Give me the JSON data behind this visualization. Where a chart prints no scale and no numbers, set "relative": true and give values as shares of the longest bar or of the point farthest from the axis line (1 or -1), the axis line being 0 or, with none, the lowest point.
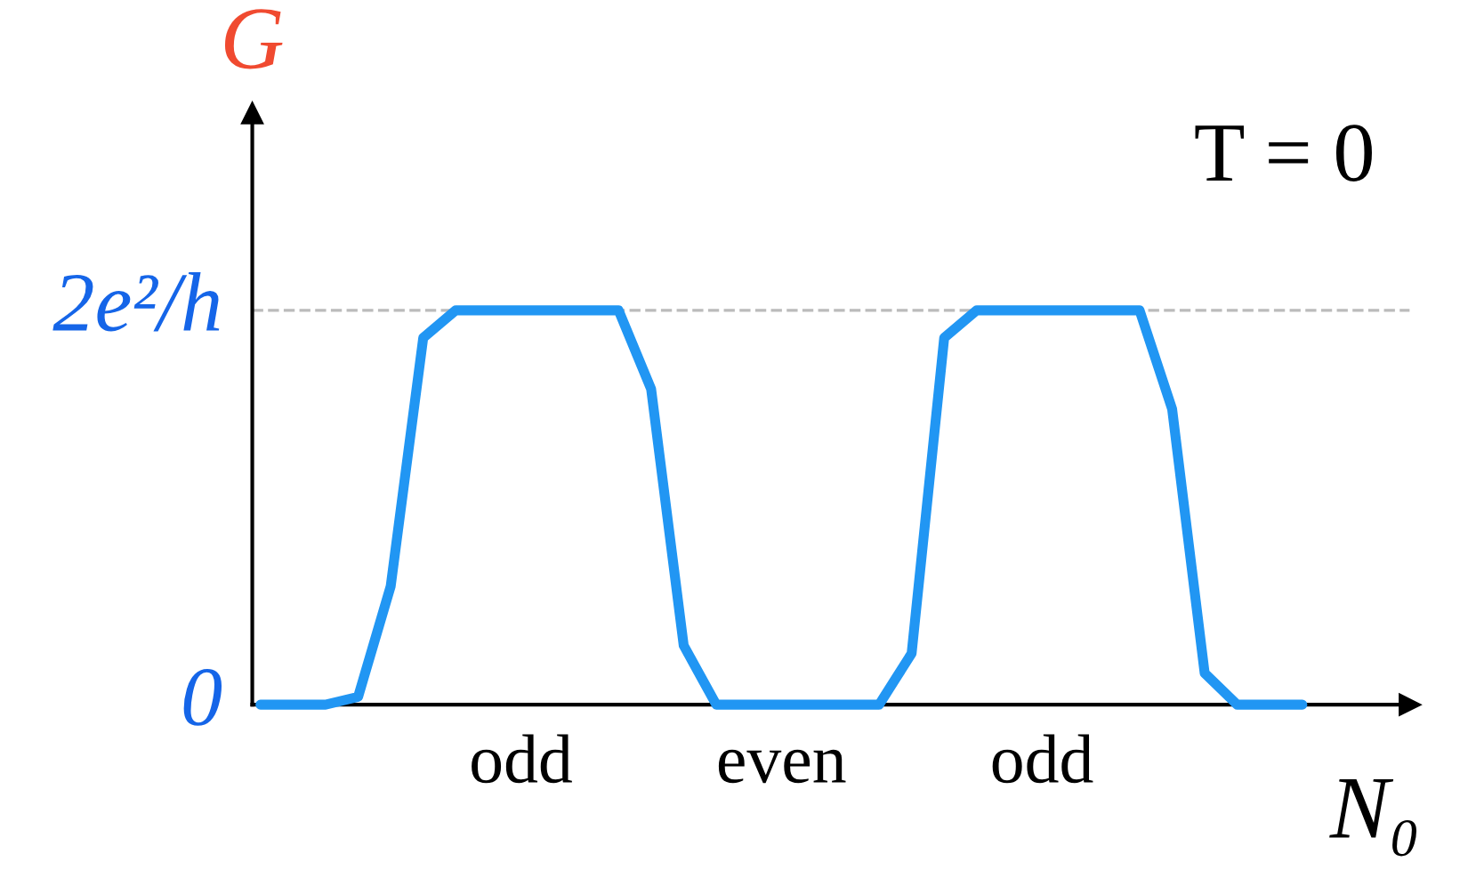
{
  "chart_data": {
    "type": "line",
    "xlabel": "N₀",
    "ylabel": "G",
    "relative": true,
    "annotations": [
      "T = 0",
      "0",
      "2e²/h"
    ],
    "categories": [
      null,
      null,
      null,
      null,
      null,
      null,
      null,
      null,
      "odd",
      null,
      null,
      null,
      null,
      null,
      null,
      null,
      "even",
      null,
      null,
      null,
      null,
      null,
      null,
      null,
      "odd",
      null,
      null,
      null,
      null,
      null,
      null,
      null,
      null
    ],
    "series": [
      {
        "color": "#2196f3",
        "values": [
          0,
          0,
          0,
          0.02,
          0.3,
          0.93,
          1,
          1,
          1,
          1,
          1,
          1,
          0.8,
          0.15,
          0,
          0,
          0,
          0,
          0,
          0,
          0.13,
          0.93,
          1,
          1,
          1,
          1,
          1,
          1,
          0.75,
          0.08,
          0,
          0,
          0
        ]
      }
    ],
    "ref_lines": [
      {
        "axis": "y",
        "value": 1,
        "color": "#bbbbbb",
        "line_style": "dashed"
      }
    ],
    "grid": false,
    "legend": false,
    "marker": "none",
    "line_style": "solid"
  }
}
